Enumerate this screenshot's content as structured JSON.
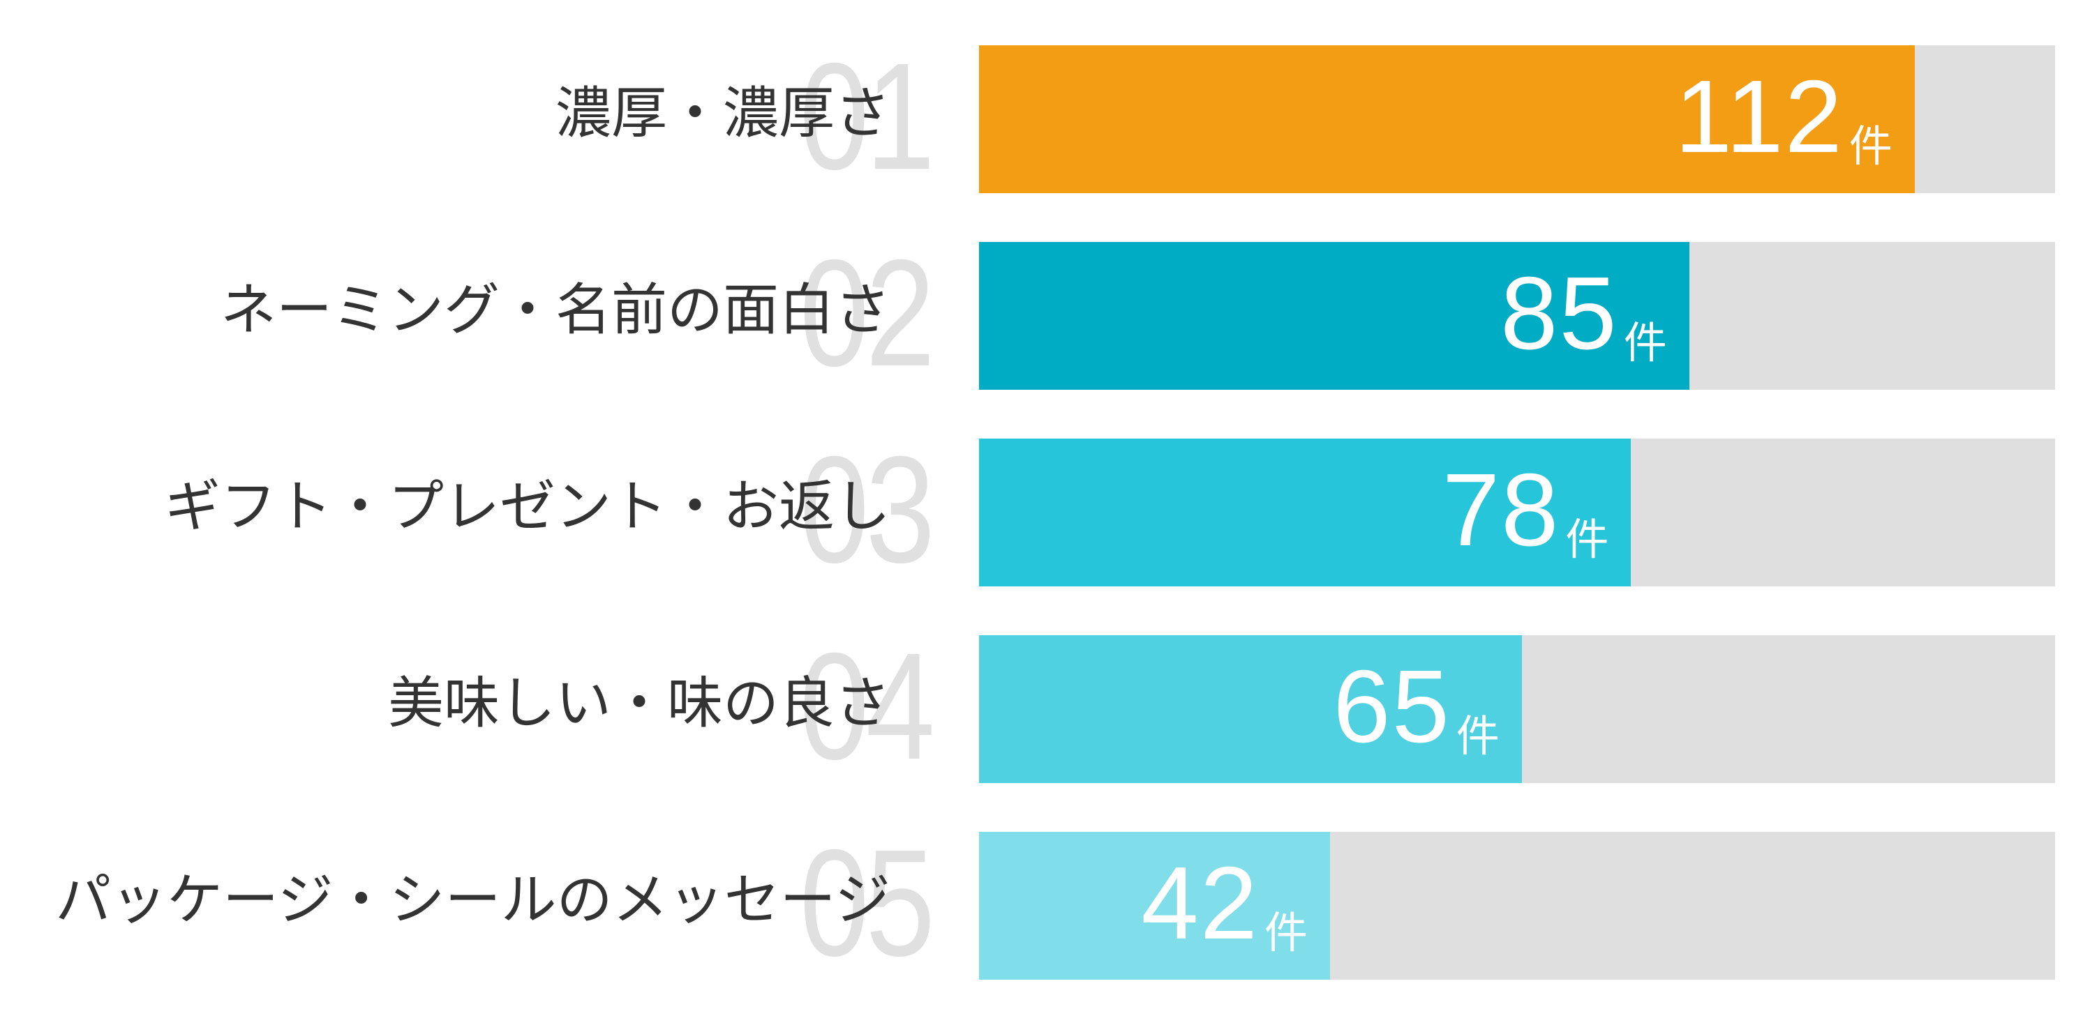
{
  "chart_data": {
    "type": "bar",
    "orientation": "horizontal",
    "title": "",
    "xlabel": "",
    "ylabel": "",
    "unit": "件",
    "categories": [
      "濃厚・濃厚さ",
      "ネーミング・名前の面白さ",
      "ギフト・プレゼント・お返し",
      "美味しい・味の良さ",
      "パッケージ・シールのメッセージ"
    ],
    "values": [
      112,
      85,
      78,
      65,
      42
    ],
    "ranks": [
      "01",
      "02",
      "03",
      "04",
      "05"
    ],
    "xlim": [
      0,
      129
    ],
    "grid": false,
    "legend": null
  },
  "colors": {
    "track": "#dfdfdf",
    "rank_number": "#e0e0e0",
    "label_text": "#333333",
    "value_text": "#ffffff"
  },
  "rows": [
    {
      "rank": "01",
      "label": "濃厚・濃厚さ",
      "value": "112",
      "unit": "件",
      "color": "#f29d14",
      "percent": 86.96
    },
    {
      "rank": "02",
      "label": "ネーミング・名前の面白さ",
      "value": "85",
      "unit": "件",
      "color": "#00acc4",
      "percent": 66.0
    },
    {
      "rank": "03",
      "label": "ギフト・プレゼント・お返し",
      "value": "78",
      "unit": "件",
      "color": "#26c5da",
      "percent": 60.6
    },
    {
      "rank": "04",
      "label": "美味しい・味の良さ",
      "value": "65",
      "unit": "件",
      "color": "#4fd1e1",
      "percent": 50.45
    },
    {
      "rank": "05",
      "label": "パッケージ・シールのメッセージ",
      "value": "42",
      "unit": "件",
      "color": "#80deea",
      "percent": 32.62
    }
  ]
}
